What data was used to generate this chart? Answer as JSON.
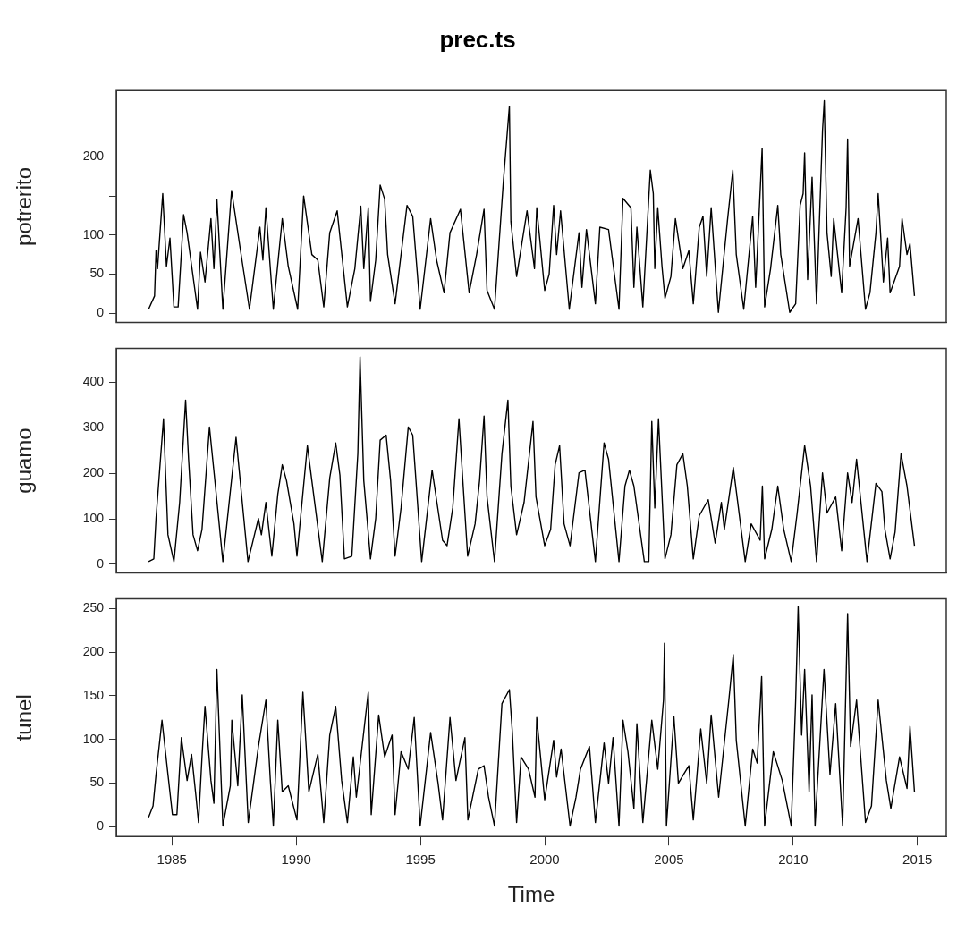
{
  "chart_data": [
    {
      "type": "line",
      "title": "prec.ts",
      "ylabel": "potrerito",
      "marker": "none",
      "line_style": "solid",
      "tick_labels": "y",
      "xlim": [
        1982.76,
        2016.16
      ],
      "ylim": [
        -12,
        285
      ],
      "yticks": [
        0,
        50,
        100,
        {
          "value": 150,
          "label": null
        },
        200
      ],
      "x": [
        1984.06,
        1984.3,
        1984.36,
        1984.42,
        1984.63,
        1984.78,
        1984.92,
        1985.08,
        1985.25,
        1985.47,
        1985.61,
        1986.03,
        1986.15,
        1986.33,
        1986.57,
        1986.69,
        1986.81,
        1987.05,
        1987.4,
        1987.76,
        1988.12,
        1988.54,
        1988.66,
        1988.78,
        1989.08,
        1989.44,
        1989.68,
        1990.06,
        1990.3,
        1990.63,
        1990.87,
        1991.11,
        1991.35,
        1991.65,
        1992.06,
        1992.36,
        1992.6,
        1992.72,
        1992.9,
        1992.99,
        1993.2,
        1993.38,
        1993.56,
        1993.68,
        1993.98,
        1994.46,
        1994.69,
        1994.99,
        1995.41,
        1995.65,
        1995.95,
        1996.19,
        1996.61,
        1996.96,
        1997.26,
        1997.56,
        1997.68,
        1997.98,
        1998.34,
        1998.58,
        1998.64,
        1998.87,
        1999.29,
        1999.59,
        1999.68,
        2000.0,
        2000.18,
        2000.36,
        2000.48,
        2000.64,
        2000.99,
        2001.38,
        2001.5,
        2001.68,
        2002.04,
        2002.22,
        2002.57,
        2002.99,
        2003.15,
        2003.47,
        2003.59,
        2003.71,
        2003.95,
        2004.25,
        2004.37,
        2004.43,
        2004.55,
        2004.72,
        2004.84,
        2005.08,
        2005.26,
        2005.56,
        2005.8,
        2005.98,
        2006.22,
        2006.37,
        2006.52,
        2006.7,
        2006.99,
        2007.35,
        2007.57,
        2007.71,
        2008.01,
        2008.37,
        2008.49,
        2008.75,
        2008.85,
        2009.09,
        2009.38,
        2009.5,
        2009.86,
        2010.1,
        2010.28,
        2010.4,
        2010.46,
        2010.58,
        2010.76,
        2010.94,
        2011.18,
        2011.25,
        2011.36,
        2011.53,
        2011.63,
        2011.95,
        2012.13,
        2012.19,
        2012.27,
        2012.61,
        2012.91,
        2013.09,
        2013.33,
        2013.42,
        2013.63,
        2013.8,
        2013.9,
        2014.28,
        2014.38,
        2014.58,
        2014.7,
        2014.88
      ],
      "series": [
        {
          "color": "#000000",
          "values": [
            5,
            22,
            80,
            57,
            153,
            60,
            96,
            8,
            8,
            126,
            103,
            5,
            78,
            40,
            121,
            57,
            146,
            5,
            157,
            80,
            5,
            110,
            68,
            135,
            5,
            121,
            60,
            5,
            150,
            75,
            68,
            8,
            103,
            131,
            8,
            57,
            137,
            57,
            135,
            15,
            68,
            164,
            146,
            75,
            12,
            138,
            124,
            5,
            121,
            68,
            26,
            103,
            133,
            26,
            75,
            133,
            29,
            5,
            170,
            265,
            117,
            47,
            131,
            57,
            135,
            29,
            50,
            138,
            75,
            131,
            5,
            103,
            33,
            107,
            12,
            110,
            107,
            5,
            147,
            135,
            33,
            110,
            8,
            183,
            153,
            57,
            135,
            60,
            19,
            47,
            121,
            57,
            80,
            12,
            110,
            124,
            47,
            135,
            1,
            117,
            183,
            75,
            5,
            124,
            33,
            211,
            8,
            57,
            138,
            75,
            1,
            12,
            138,
            153,
            205,
            43,
            174,
            12,
            234,
            272,
            103,
            47,
            121,
            26,
            135,
            223,
            60,
            121,
            5,
            26,
            103,
            153,
            40,
            96,
            26,
            60,
            121,
            75,
            89,
            22
          ]
        }
      ]
    },
    {
      "type": "line",
      "ylabel": "guamo",
      "marker": "none",
      "line_style": "solid",
      "tick_labels": "y",
      "xlim": [
        1982.76,
        2016.16
      ],
      "ylim": [
        -19,
        475
      ],
      "yticks": [
        0,
        100,
        200,
        300,
        400
      ],
      "x": [
        1984.06,
        1984.27,
        1984.36,
        1984.66,
        1984.84,
        1985.08,
        1985.31,
        1985.55,
        1985.67,
        1985.85,
        1986.03,
        1986.21,
        1986.51,
        1986.75,
        1987.05,
        1987.58,
        1988.06,
        1988.48,
        1988.6,
        1988.78,
        1989.02,
        1989.26,
        1989.44,
        1989.61,
        1989.91,
        1990.03,
        1990.45,
        1990.63,
        1991.05,
        1991.35,
        1991.59,
        1991.76,
        1991.94,
        1992.24,
        1992.48,
        1992.57,
        1992.72,
        1992.99,
        1993.2,
        1993.38,
        1993.62,
        1993.8,
        1993.98,
        1994.22,
        1994.51,
        1994.69,
        1995.05,
        1995.47,
        1995.89,
        1996.07,
        1996.3,
        1996.55,
        1996.72,
        1996.9,
        1997.2,
        1997.38,
        1997.56,
        1997.68,
        1997.98,
        1998.28,
        1998.52,
        1998.64,
        1998.87,
        1999.17,
        1999.53,
        1999.65,
        2000.0,
        2000.24,
        2000.42,
        2000.6,
        2000.78,
        2001.02,
        2001.38,
        2001.62,
        2002.04,
        2002.39,
        2002.57,
        2002.99,
        2003.23,
        2003.41,
        2003.59,
        2004.01,
        2004.19,
        2004.31,
        2004.43,
        2004.58,
        2004.84,
        2005.08,
        2005.32,
        2005.56,
        2005.74,
        2005.98,
        2006.22,
        2006.58,
        2006.86,
        2007.11,
        2007.23,
        2007.59,
        2008.07,
        2008.31,
        2008.67,
        2008.76,
        2008.85,
        2009.14,
        2009.38,
        2009.62,
        2009.92,
        2010.16,
        2010.46,
        2010.7,
        2010.94,
        2011.18,
        2011.36,
        2011.71,
        2011.95,
        2012.19,
        2012.37,
        2012.55,
        2012.97,
        2013.33,
        2013.57,
        2013.69,
        2013.9,
        2014.1,
        2014.34,
        2014.58,
        2014.88
      ],
      "series": [
        {
          "color": "#000000",
          "values": [
            6,
            12,
            101,
            320,
            65,
            6,
            136,
            361,
            231,
            65,
            30,
            77,
            302,
            172,
            6,
            279,
            6,
            101,
            65,
            136,
            18,
            154,
            219,
            184,
            89,
            18,
            261,
            184,
            6,
            190,
            267,
            196,
            12,
            18,
            243,
            456,
            184,
            12,
            101,
            273,
            284,
            184,
            18,
            124,
            302,
            284,
            6,
            207,
            53,
            41,
            124,
            320,
            172,
            18,
            89,
            184,
            326,
            148,
            6,
            243,
            361,
            172,
            65,
            136,
            314,
            148,
            41,
            77,
            219,
            261,
            89,
            41,
            201,
            207,
            6,
            267,
            231,
            6,
            172,
            207,
            172,
            6,
            6,
            314,
            124,
            320,
            12,
            65,
            219,
            243,
            172,
            12,
            107,
            142,
            47,
            136,
            77,
            213,
            6,
            89,
            53,
            172,
            12,
            77,
            172,
            77,
            6,
            113,
            261,
            172,
            6,
            201,
            113,
            148,
            30,
            201,
            136,
            231,
            6,
            178,
            160,
            77,
            12,
            71,
            243,
            172,
            41
          ]
        }
      ]
    },
    {
      "type": "line",
      "ylabel": "tunel",
      "xlabel": "Time",
      "marker": "none",
      "line_style": "solid",
      "xlim": [
        1982.76,
        2016.16
      ],
      "xticks": [
        1985,
        1990,
        1995,
        2000,
        2005,
        2010,
        2015
      ],
      "ylim": [
        -11,
        261
      ],
      "yticks": [
        0,
        50,
        100,
        150,
        200,
        250
      ],
      "x": [
        1984.06,
        1984.24,
        1984.36,
        1984.6,
        1984.84,
        1985.02,
        1985.2,
        1985.38,
        1985.61,
        1985.79,
        1985.97,
        1986.07,
        1986.21,
        1986.33,
        1986.57,
        1986.69,
        1986.81,
        1987.05,
        1987.35,
        1987.41,
        1987.65,
        1987.83,
        1988.07,
        1988.48,
        1988.78,
        1988.96,
        1989.08,
        1989.26,
        1989.44,
        1989.68,
        1990.03,
        1990.27,
        1990.51,
        1990.87,
        1991.11,
        1991.35,
        1991.59,
        1991.83,
        1992.06,
        1992.3,
        1992.42,
        1992.9,
        1993.02,
        1993.32,
        1993.56,
        1993.86,
        1993.98,
        1994.22,
        1994.51,
        1994.75,
        1994.99,
        1995.41,
        1995.71,
        1995.89,
        1996.19,
        1996.43,
        1996.79,
        1996.91,
        1997.33,
        1997.56,
        1997.74,
        1997.98,
        1998.28,
        1998.58,
        1998.7,
        1998.87,
        1999.05,
        1999.35,
        1999.61,
        1999.68,
        2000.0,
        2000.36,
        2000.48,
        2000.66,
        2001.02,
        2001.26,
        2001.44,
        2001.8,
        2002.04,
        2002.39,
        2002.57,
        2002.75,
        2002.99,
        2003.15,
        2003.35,
        2003.59,
        2003.71,
        2003.95,
        2004.31,
        2004.55,
        2004.78,
        2004.82,
        2004.9,
        2005.2,
        2005.38,
        2005.8,
        2005.98,
        2006.28,
        2006.52,
        2006.7,
        2007.0,
        2007.41,
        2007.59,
        2007.71,
        2008.07,
        2008.37,
        2008.55,
        2008.73,
        2008.85,
        2009.2,
        2009.56,
        2009.92,
        2010.1,
        2010.2,
        2010.34,
        2010.46,
        2010.64,
        2010.76,
        2010.88,
        2011.24,
        2011.48,
        2011.71,
        2011.99,
        2012.19,
        2012.31,
        2012.55,
        2012.91,
        2013.15,
        2013.42,
        2013.75,
        2013.93,
        2014.28,
        2014.58,
        2014.7,
        2014.88
      ],
      "series": [
        {
          "color": "#000000",
          "values": [
            11,
            24,
            60,
            122,
            60,
            14,
            14,
            102,
            53,
            83,
            34,
            5,
            80,
            138,
            53,
            27,
            180,
            1,
            47,
            122,
            47,
            151,
            5,
            92,
            145,
            53,
            1,
            122,
            40,
            47,
            8,
            154,
            40,
            83,
            5,
            105,
            138,
            53,
            5,
            80,
            34,
            154,
            14,
            128,
            80,
            105,
            14,
            86,
            66,
            125,
            1,
            108,
            50,
            8,
            125,
            53,
            102,
            8,
            66,
            70,
            34,
            1,
            141,
            157,
            108,
            5,
            80,
            66,
            34,
            125,
            31,
            99,
            57,
            89,
            1,
            34,
            66,
            92,
            5,
            96,
            50,
            102,
            1,
            122,
            86,
            21,
            118,
            5,
            122,
            66,
            145,
            210,
            1,
            126,
            50,
            70,
            8,
            112,
            50,
            128,
            34,
            145,
            197,
            99,
            1,
            89,
            73,
            172,
            1,
            86,
            53,
            1,
            145,
            252,
            105,
            180,
            40,
            151,
            1,
            180,
            60,
            141,
            1,
            244,
            92,
            145,
            5,
            24,
            145,
            53,
            21,
            80,
            44,
            115,
            40
          ]
        }
      ]
    }
  ]
}
